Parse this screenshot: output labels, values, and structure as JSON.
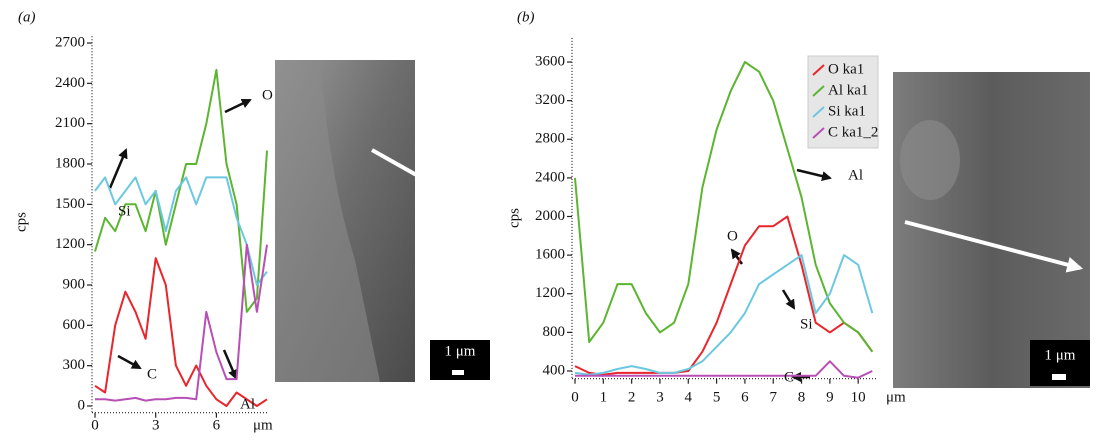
{
  "chart_data": [
    {
      "type": "line",
      "panel_label": "(a)",
      "ylabel": "cps",
      "xlabel": "μm",
      "x": [
        0,
        0.5,
        1,
        1.5,
        2,
        2.5,
        3,
        3.5,
        4,
        4.5,
        5,
        5.5,
        6,
        6.5,
        7,
        7.5,
        8,
        8.5
      ],
      "xlim": [
        0,
        8.5
      ],
      "xticks": [
        0,
        3,
        6
      ],
      "ylim": [
        -50,
        2750
      ],
      "yticks": [
        0,
        300,
        600,
        900,
        1200,
        1500,
        1800,
        2100,
        2400,
        2700
      ],
      "series": [
        {
          "name": "O",
          "color": "#5cb531",
          "values": [
            1150,
            1400,
            1300,
            1500,
            1500,
            1300,
            1600,
            1200,
            1500,
            1800,
            1800,
            2100,
            2500,
            1800,
            1500,
            700,
            800,
            1900
          ]
        },
        {
          "name": "Si",
          "color": "#6cc8e0",
          "values": [
            1600,
            1700,
            1500,
            1600,
            1700,
            1500,
            1600,
            1300,
            1600,
            1700,
            1500,
            1700,
            1700,
            1700,
            1400,
            1200,
            900,
            1000
          ]
        },
        {
          "name": "C",
          "color": "#e8262b",
          "values": [
            150,
            100,
            600,
            850,
            700,
            500,
            1100,
            900,
            300,
            150,
            300,
            150,
            50,
            0,
            100,
            50,
            0,
            50
          ]
        },
        {
          "name": "Al",
          "color": "#b84fb5",
          "values": [
            50,
            50,
            40,
            50,
            60,
            40,
            50,
            50,
            60,
            60,
            50,
            700,
            400,
            200,
            200,
            1200,
            700,
            1200
          ]
        }
      ],
      "scale_bar": "1 μm"
    },
    {
      "type": "line",
      "panel_label": "(b)",
      "ylabel": "cps",
      "xlabel": "μm",
      "x": [
        0,
        0.5,
        1,
        1.5,
        2,
        2.5,
        3,
        3.5,
        4,
        4.5,
        5,
        5.5,
        6,
        6.5,
        7,
        7.5,
        8,
        8.5,
        9,
        9.5,
        10,
        10.5
      ],
      "xlim": [
        0,
        10.7
      ],
      "xticks": [
        0,
        1,
        2,
        3,
        4,
        5,
        6,
        7,
        8,
        9,
        10
      ],
      "ylim": [
        320,
        3850
      ],
      "yticks": [
        400,
        800,
        1200,
        1600,
        2000,
        2400,
        2800,
        3200,
        3600
      ],
      "series": [
        {
          "name": "O ka1",
          "color": "#e8262b",
          "values": [
            450,
            380,
            360,
            380,
            380,
            380,
            380,
            380,
            400,
            600,
            900,
            1300,
            1700,
            1900,
            1900,
            2000,
            1500,
            900,
            800,
            900,
            800,
            600
          ]
        },
        {
          "name": "Al ka1",
          "color": "#5cb531",
          "values": [
            2400,
            700,
            900,
            1300,
            1300,
            1000,
            800,
            900,
            1300,
            2300,
            2900,
            3300,
            3600,
            3500,
            3200,
            2700,
            2200,
            1500,
            1100,
            900,
            800,
            600
          ]
        },
        {
          "name": "Si ka1",
          "color": "#6cc8e0",
          "values": [
            380,
            360,
            380,
            420,
            450,
            420,
            380,
            380,
            420,
            500,
            650,
            800,
            1000,
            1300,
            1400,
            1500,
            1600,
            1000,
            1200,
            1600,
            1500,
            1000
          ]
        },
        {
          "name": "C ka1_2",
          "color": "#b84fb5",
          "values": [
            350,
            350,
            350,
            350,
            350,
            350,
            350,
            350,
            350,
            350,
            350,
            350,
            350,
            350,
            350,
            350,
            350,
            350,
            500,
            350,
            330,
            400
          ]
        }
      ],
      "annotations": [
        "Al",
        "O",
        "Si",
        "C"
      ],
      "scale_bar": "1 μm"
    }
  ]
}
